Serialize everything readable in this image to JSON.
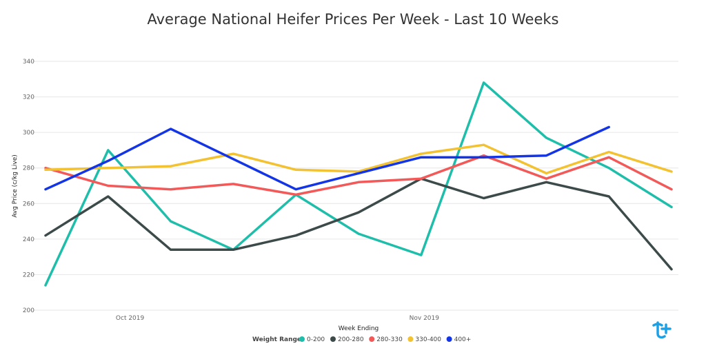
{
  "chart_data": {
    "type": "line",
    "title": "Average National Heifer Prices Per Week - Last 10 Weeks",
    "xlabel": "Week Ending",
    "ylabel": "Avg Price (c/kg Live)",
    "ylim": [
      200,
      340
    ],
    "yticks": [
      200,
      220,
      240,
      260,
      280,
      300,
      320,
      340
    ],
    "x_tick_labels": [
      {
        "label": "Oct 2019",
        "index": 1.35
      },
      {
        "label": "Nov 2019",
        "index": 6.05
      }
    ],
    "grid": true,
    "legend": {
      "title": "Weight Range",
      "placement": "bottom-center"
    },
    "series": [
      {
        "name": "0-200",
        "color": "#1ebeaa",
        "values": [
          214,
          290,
          250,
          234,
          265,
          243,
          231,
          328,
          297,
          280,
          258
        ]
      },
      {
        "name": "200-280",
        "color": "#3d4a4a",
        "values": [
          242,
          264,
          234,
          234,
          242,
          255,
          274,
          263,
          272,
          264,
          223
        ]
      },
      {
        "name": "280-330",
        "color": "#f25a5a",
        "values": [
          280,
          270,
          268,
          271,
          265,
          272,
          274,
          287,
          274,
          286,
          268
        ]
      },
      {
        "name": "330-400",
        "color": "#f2c232",
        "values": [
          279,
          280,
          281,
          288,
          279,
          278,
          288,
          293,
          277,
          289,
          278
        ]
      },
      {
        "name": "400+",
        "color": "#1435e6",
        "values": [
          268,
          284,
          302,
          285,
          268,
          277,
          286,
          286,
          287,
          303,
          null
        ]
      }
    ]
  },
  "logo": {
    "icon": "brand-logo-icon",
    "color": "#1da1e6"
  }
}
